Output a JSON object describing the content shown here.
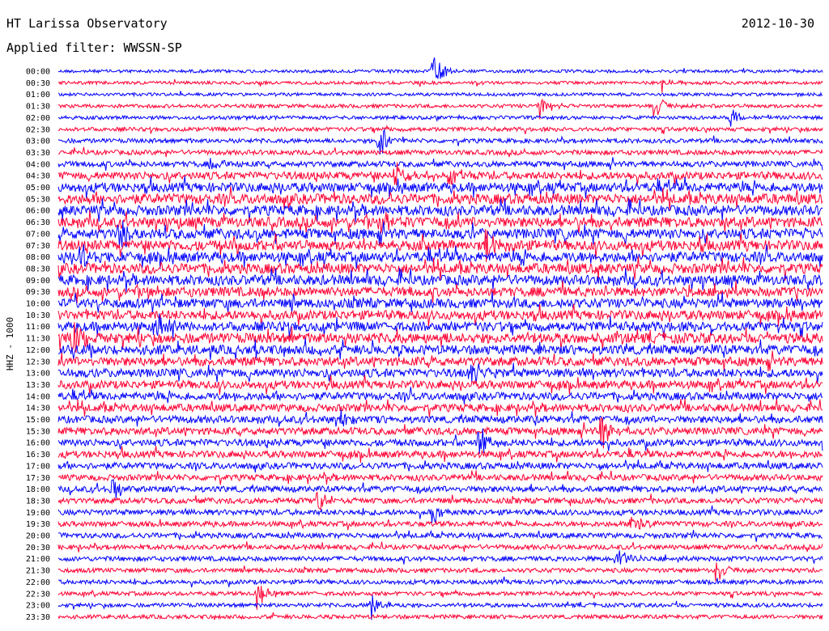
{
  "header": {
    "title": "HT Larissa Observatory",
    "date": "2012-10-30",
    "filter": "Applied filter: WWSSN-SP"
  },
  "chart_data": {
    "type": "line",
    "title": "HT Larissa Observatory",
    "ylabel": "HHZ - 1000",
    "colors": [
      "#0000ff",
      "#ff0033"
    ],
    "row_labels": [
      "00:00",
      "00:30",
      "01:00",
      "01:30",
      "02:00",
      "02:30",
      "03:00",
      "03:30",
      "04:00",
      "04:30",
      "05:00",
      "05:30",
      "06:00",
      "06:30",
      "07:00",
      "07:30",
      "08:00",
      "08:30",
      "09:00",
      "09:30",
      "10:00",
      "10:30",
      "11:00",
      "11:30",
      "12:00",
      "12:30",
      "13:00",
      "13:30",
      "14:00",
      "14:30",
      "15:00",
      "15:30",
      "16:00",
      "16:30",
      "17:00",
      "17:30",
      "18:00",
      "18:30",
      "19:00",
      "19:30",
      "20:00",
      "20:30",
      "21:00",
      "21:30",
      "22:00",
      "22:30",
      "23:00",
      "23:30"
    ],
    "noise_level": [
      0.15,
      0.15,
      0.15,
      0.2,
      0.2,
      0.25,
      0.3,
      0.35,
      0.45,
      0.7,
      0.9,
      1.0,
      1.0,
      1.0,
      1.0,
      1.0,
      1.0,
      1.0,
      1.0,
      0.9,
      0.9,
      0.9,
      0.9,
      1.0,
      0.9,
      0.85,
      0.8,
      0.75,
      0.7,
      0.7,
      0.65,
      0.65,
      0.6,
      0.6,
      0.55,
      0.5,
      0.5,
      0.45,
      0.45,
      0.4,
      0.4,
      0.35,
      0.35,
      0.3,
      0.3,
      0.25,
      0.25,
      0.25
    ],
    "events": [
      {
        "row": 0,
        "t": 0.49,
        "amp": 1.0
      },
      {
        "row": 1,
        "t": 0.79,
        "amp": 0.5
      },
      {
        "row": 3,
        "t": 0.63,
        "amp": 0.7
      },
      {
        "row": 3,
        "t": 0.78,
        "amp": 0.8
      },
      {
        "row": 4,
        "t": 0.88,
        "amp": 0.6
      },
      {
        "row": 6,
        "t": 0.42,
        "amp": 1.0
      },
      {
        "row": 8,
        "t": 0.2,
        "amp": 0.6
      },
      {
        "row": 9,
        "t": 0.44,
        "amp": 0.9
      },
      {
        "row": 9,
        "t": 0.51,
        "amp": 0.8
      },
      {
        "row": 13,
        "t": 0.42,
        "amp": 1.0
      },
      {
        "row": 14,
        "t": 0.08,
        "amp": 1.0
      },
      {
        "row": 15,
        "t": 0.56,
        "amp": 1.0
      },
      {
        "row": 16,
        "t": 0.03,
        "amp": 0.8
      },
      {
        "row": 22,
        "t": 0.13,
        "amp": 0.9
      },
      {
        "row": 23,
        "t": 0.02,
        "amp": 1.0
      },
      {
        "row": 26,
        "t": 0.54,
        "amp": 0.8
      },
      {
        "row": 30,
        "t": 0.37,
        "amp": 0.7
      },
      {
        "row": 31,
        "t": 0.71,
        "amp": 1.0
      },
      {
        "row": 32,
        "t": 0.55,
        "amp": 0.9
      },
      {
        "row": 36,
        "t": 0.07,
        "amp": 0.7
      },
      {
        "row": 37,
        "t": 0.34,
        "amp": 0.7
      },
      {
        "row": 38,
        "t": 0.49,
        "amp": 0.6
      },
      {
        "row": 39,
        "t": 0.75,
        "amp": 0.6
      },
      {
        "row": 42,
        "t": 0.73,
        "amp": 1.0
      },
      {
        "row": 43,
        "t": 0.86,
        "amp": 0.8
      },
      {
        "row": 45,
        "t": 0.26,
        "amp": 0.8
      },
      {
        "row": 46,
        "t": 0.41,
        "amp": 0.8
      }
    ]
  }
}
